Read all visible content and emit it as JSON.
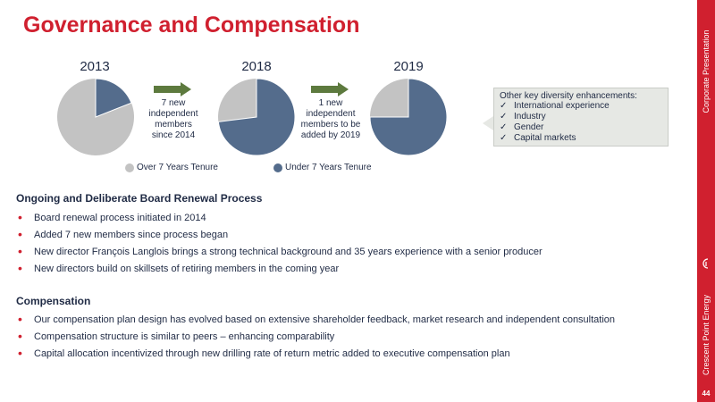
{
  "title": "Governance and Compensation",
  "sidebar": {
    "top_label": "Corporate Presentation",
    "bottom_label": "Crescent Point Energy",
    "page_number": "44"
  },
  "colors": {
    "accent": "#d0202f",
    "over_tenure": "#c3c3c3",
    "under_tenure": "#546c8c",
    "text": "#1f2a44"
  },
  "pies": [
    {
      "year": "2013",
      "under_fraction": 0.19
    },
    {
      "year": "2018",
      "under_fraction": 0.73
    },
    {
      "year": "2019",
      "under_fraction": 0.75
    }
  ],
  "arrows": [
    {
      "text": [
        "7 new",
        "independent",
        "members",
        "since 2014"
      ]
    },
    {
      "text": [
        "1 new",
        "independent",
        "members to be",
        "added by 2019"
      ]
    }
  ],
  "legend": {
    "over": "Over 7 Years Tenure",
    "under": "Under 7 Years Tenure"
  },
  "callout": {
    "heading": "Other key diversity enhancements:",
    "check_icon": "checkmark-icon",
    "items": [
      "International experience",
      "Industry",
      "Gender",
      "Capital markets"
    ]
  },
  "board_renewal": {
    "heading": "Ongoing and Deliberate Board Renewal Process",
    "bullets": [
      "Board renewal process initiated in 2014",
      "Added 7 new members since process began",
      "New director François Langlois brings a strong technical background and 35 years experience with a senior producer",
      "New directors build on skillsets of retiring members in the coming year"
    ]
  },
  "compensation": {
    "heading": "Compensation",
    "bullets": [
      "Our compensation plan design has evolved based on extensive shareholder feedback, market research and independent consultation",
      "Compensation structure is similar to peers – enhancing comparability",
      "Capital allocation incentivized through new drilling rate of return metric added to executive compensation plan"
    ]
  }
}
